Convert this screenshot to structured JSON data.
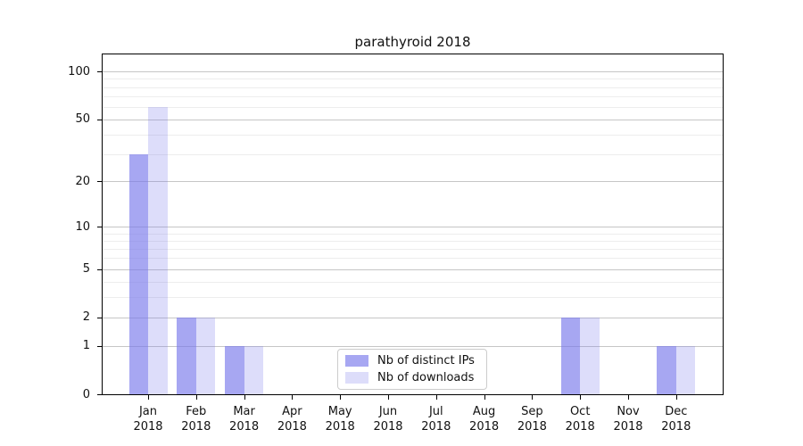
{
  "title": "parathyroid 2018",
  "colors": {
    "distinct_ips_bar": "rgba(120,120,235,0.65)",
    "downloads_bar": "rgba(120,120,235,0.25)",
    "major_grid": "#c6c6c6",
    "minor_grid": "#ededed",
    "spine": "#000000",
    "background": "#ffffff"
  },
  "legend": {
    "items": [
      {
        "label": "Nb of distinct IPs",
        "color": "rgba(120,120,235,0.65)"
      },
      {
        "label": "Nb of downloads",
        "color": "rgba(120,120,235,0.25)"
      }
    ]
  },
  "chart_data": {
    "type": "bar",
    "title": "parathyroid 2018",
    "xlabel": "",
    "ylabel": "",
    "categories": [
      "Jan 2018",
      "Feb 2018",
      "Mar 2018",
      "Apr 2018",
      "May 2018",
      "Jun 2018",
      "Jul 2018",
      "Aug 2018",
      "Sep 2018",
      "Oct 2018",
      "Nov 2018",
      "Dec 2018"
    ],
    "series": [
      {
        "name": "Nb of distinct IPs",
        "color": "rgba(120,120,235,0.65)",
        "values": [
          30,
          2,
          1,
          0,
          0,
          0,
          0,
          0,
          0,
          2,
          0,
          1
        ]
      },
      {
        "name": "Nb of downloads",
        "color": "rgba(120,120,235,0.25)",
        "values": [
          60,
          2,
          1,
          0,
          0,
          0,
          0,
          0,
          0,
          2,
          0,
          1
        ]
      }
    ],
    "yscale": "log1p",
    "ylim": [
      0,
      128
    ],
    "yticks": [
      0,
      1,
      2,
      5,
      10,
      20,
      50,
      100
    ],
    "minor_yticks": [
      3,
      4,
      6,
      7,
      8,
      9,
      30,
      40,
      60,
      70,
      80,
      90
    ],
    "grid": "horizontal",
    "legend_position": "lower center (inside plot)"
  }
}
